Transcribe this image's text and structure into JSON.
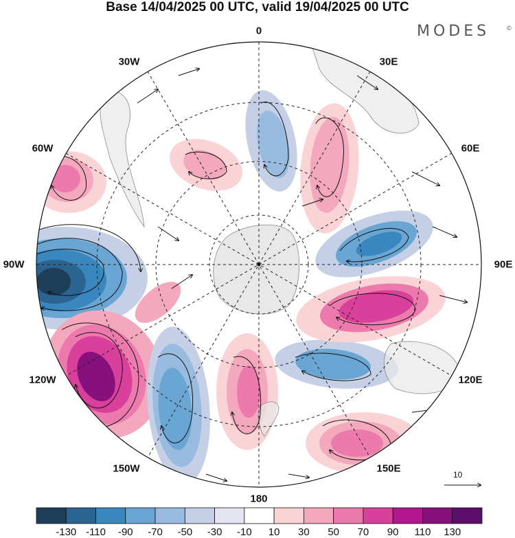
{
  "header": {
    "title": "Base 14/04/2025 00 UTC, valid 19/04/2025 00 UTC",
    "brand": "MODES",
    "brand_mark": "©"
  },
  "map": {
    "projection": "south-polar-stereographic",
    "longitude_labels": [
      "0",
      "30E",
      "60E",
      "90E",
      "120E",
      "150E",
      "180",
      "150W",
      "120W",
      "90W",
      "60W",
      "30W"
    ],
    "grid": true,
    "vector_reference": "10"
  },
  "colorbar": {
    "tick_labels": [
      "-130",
      "-110",
      "-90",
      "-70",
      "-50",
      "-30",
      "-10",
      "10",
      "30",
      "50",
      "70",
      "90",
      "110",
      "130"
    ],
    "colors": [
      "#1f3e5a",
      "#2b6391",
      "#3a86bf",
      "#6aa6d3",
      "#98bbdf",
      "#c5cfe6",
      "#e4e4f1",
      "#ffffff",
      "#f9d3d6",
      "#f3a8bd",
      "#ec7aac",
      "#d8409c",
      "#b4168e",
      "#86117c",
      "#5c0f6a"
    ]
  }
}
